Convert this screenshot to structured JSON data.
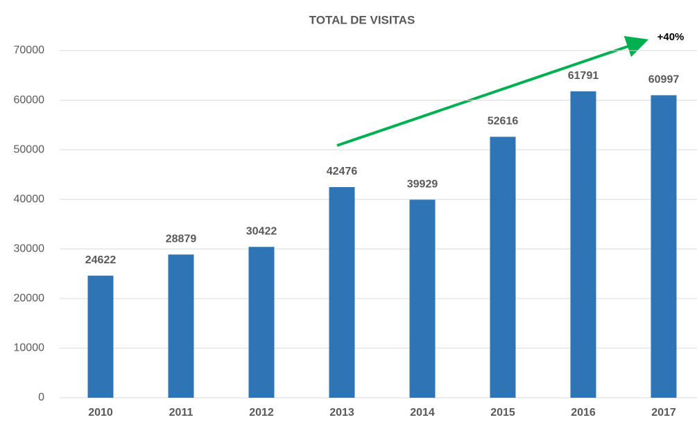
{
  "chart_data": {
    "type": "bar",
    "title": "TOTAL DE VISITAS",
    "categories": [
      "2010",
      "2011",
      "2012",
      "2013",
      "2014",
      "2015",
      "2016",
      "2017"
    ],
    "values": [
      24622,
      28879,
      30422,
      42476,
      39929,
      52616,
      61791,
      60997
    ],
    "color": "#2e75b6",
    "ylim": [
      0,
      70000
    ],
    "yticks": [
      0,
      10000,
      20000,
      30000,
      40000,
      50000,
      60000,
      70000
    ],
    "grid": true,
    "annotation": "+40%"
  }
}
